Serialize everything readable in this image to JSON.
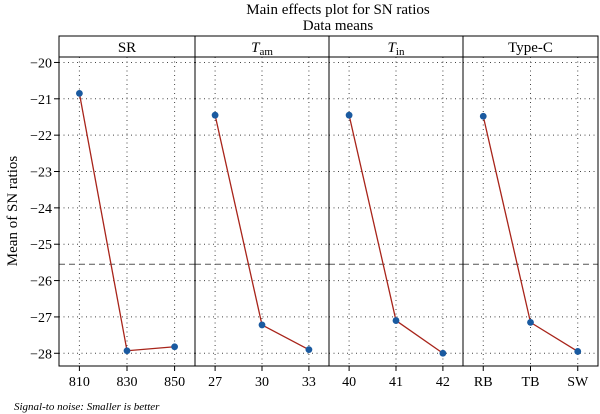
{
  "chart_data": {
    "type": "line",
    "title": "Main effects plot for SN ratios",
    "subtitle": "Data means",
    "ylabel": "Mean of SN ratios",
    "ylim": [
      -28.35,
      -19.85
    ],
    "yticks": [
      -20,
      -21,
      -22,
      -23,
      -24,
      -25,
      -26,
      -27,
      -28
    ],
    "reference_line": -25.55,
    "footnote": "Signal-to noise: Smaller is better",
    "grid": true,
    "line_color": "#a8241a",
    "marker_color": "#1a5aa0",
    "panels": [
      {
        "name_main": "SR",
        "name_sub": "",
        "categories": [
          "810",
          "830",
          "850"
        ],
        "values": [
          -20.85,
          -27.93,
          -27.82
        ]
      },
      {
        "name_main": "T",
        "name_sub": "am",
        "categories": [
          "27",
          "30",
          "33"
        ],
        "values": [
          -21.45,
          -27.22,
          -27.9
        ]
      },
      {
        "name_main": "T",
        "name_sub": "in",
        "categories": [
          "40",
          "41",
          "42"
        ],
        "values": [
          -21.45,
          -27.1,
          -28.0
        ]
      },
      {
        "name_main": "Type-C",
        "name_sub": "",
        "categories": [
          "RB",
          "TB",
          "SW"
        ],
        "values": [
          -21.48,
          -27.15,
          -27.95
        ]
      }
    ]
  }
}
